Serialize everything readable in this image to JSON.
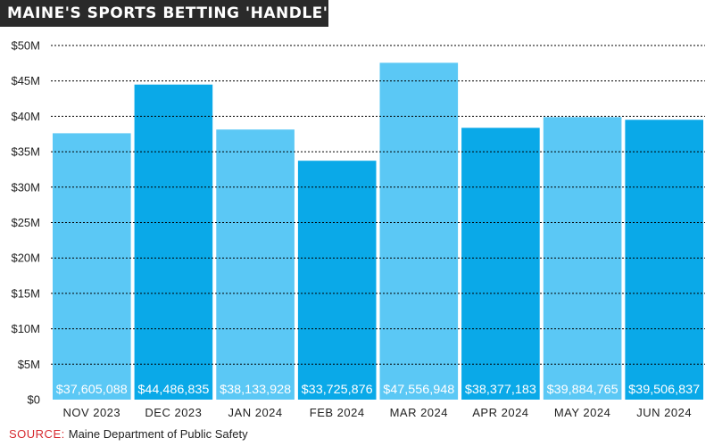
{
  "title": "MAINE'S SPORTS BETTING 'HANDLE'",
  "source": {
    "label": "SOURCE:",
    "text": "Maine Department of Public Safety"
  },
  "colors": {
    "title_bg": "#2a2a2a",
    "bar_light": "#5bc8f5",
    "bar_dark": "#0aa9e8",
    "grid": "#000000",
    "label_text": "#ffffff",
    "source_label": "#d6292f"
  },
  "chart_data": {
    "type": "bar",
    "title": "MAINE'S SPORTS BETTING 'HANDLE'",
    "categories": [
      "NOV 2023",
      "DEC 2023",
      "JAN 2024",
      "FEB 2024",
      "MAR 2024",
      "APR 2024",
      "MAY 2024",
      "JUN 2024"
    ],
    "values": [
      37605088,
      44486835,
      38133928,
      33725876,
      47556948,
      38377183,
      39884765,
      39506837
    ],
    "value_labels": [
      "$37,605,088",
      "$44,486,835",
      "$38,133,928",
      "$33,725,876",
      "$47,556,948",
      "$38,377,183",
      "$39,884,765",
      "$39,506,837"
    ],
    "ylim": [
      0,
      50000000
    ],
    "yticks": [
      0,
      5000000,
      10000000,
      15000000,
      20000000,
      25000000,
      30000000,
      35000000,
      40000000,
      45000000,
      50000000
    ],
    "ytick_labels": [
      "$0",
      "$5M",
      "$10M",
      "$15M",
      "$20M",
      "$25M",
      "$30M",
      "$35M",
      "$40M",
      "$45M",
      "$50M"
    ],
    "grid": true,
    "grid_style": "dotted",
    "xlabel": "",
    "ylabel": ""
  }
}
